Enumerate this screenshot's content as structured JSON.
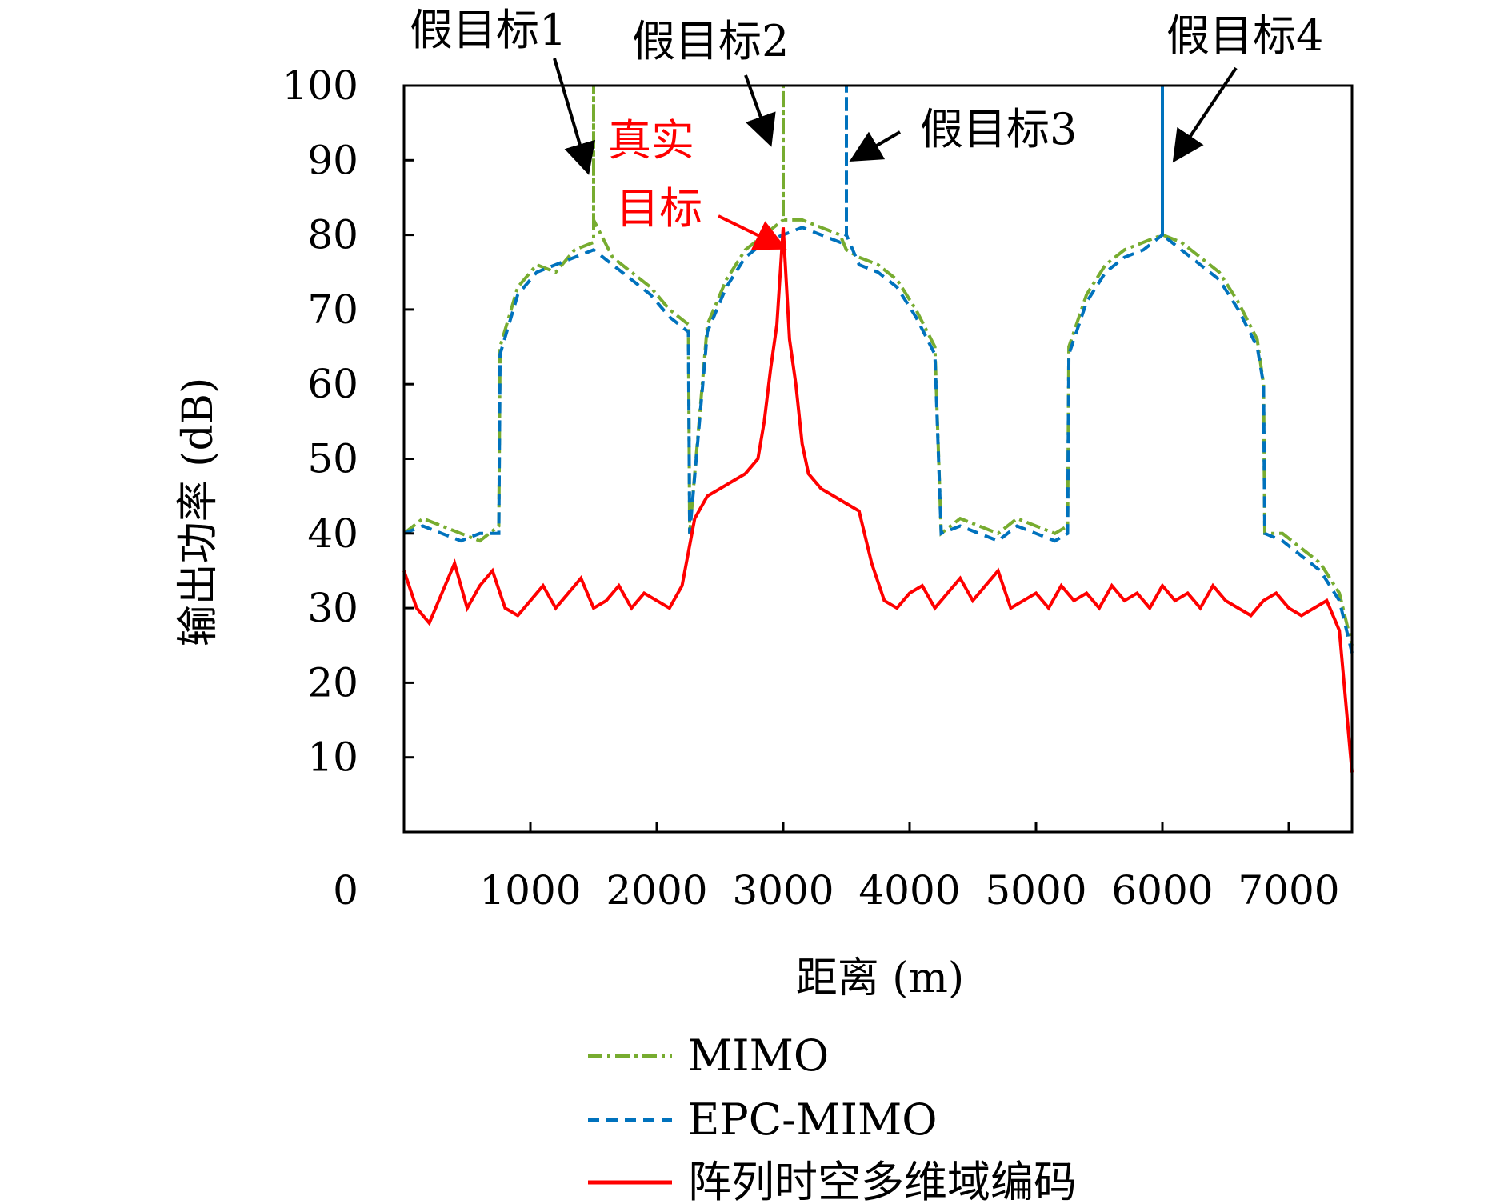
{
  "chart_data": {
    "type": "line",
    "xlabel": "距离 (m)",
    "ylabel": "输出功率 (dB)",
    "xlim": [
      0,
      7500
    ],
    "ylim": [
      0,
      100
    ],
    "x_ticks": [
      0,
      1000,
      2000,
      3000,
      4000,
      5000,
      6000,
      7000
    ],
    "y_ticks": [
      10,
      20,
      30,
      40,
      50,
      60,
      70,
      80,
      90,
      100
    ],
    "grid": false,
    "legend_position": "bottom",
    "series": [
      {
        "name": "MIMO",
        "color": "#77ac30",
        "style": "dash-dot",
        "x": [
          0,
          150,
          300,
          450,
          600,
          750,
          760,
          900,
          1050,
          1200,
          1350,
          1500,
          1500,
          1500,
          1650,
          1800,
          1950,
          2100,
          2250,
          2260,
          2400,
          2550,
          2700,
          2850,
          3000,
          3000,
          3000,
          3150,
          3300,
          3450,
          3500,
          3600,
          3750,
          3900,
          4050,
          4200,
          4250,
          4400,
          4550,
          4700,
          4850,
          5000,
          5150,
          5250,
          5260,
          5400,
          5550,
          5700,
          5850,
          6000,
          6150,
          6300,
          6450,
          6600,
          6750,
          6800,
          6810,
          6950,
          7100,
          7250,
          7400,
          7500
        ],
        "values": [
          40,
          42,
          41,
          40,
          39,
          41,
          65,
          73,
          76,
          75,
          78,
          79,
          100,
          82,
          77,
          75,
          73,
          70,
          68,
          40,
          68,
          74,
          78,
          80,
          82,
          100,
          82,
          82,
          81,
          80,
          78,
          77,
          76,
          74,
          70,
          65,
          40,
          42,
          41,
          40,
          42,
          41,
          40,
          41,
          65,
          72,
          76,
          78,
          79,
          80,
          79,
          77,
          75,
          71,
          66,
          60,
          40,
          40,
          38,
          36,
          32,
          25
        ]
      },
      {
        "name": "EPC-MIMO",
        "color": "#0072bd",
        "style": "dashed",
        "x": [
          0,
          150,
          300,
          450,
          600,
          750,
          760,
          900,
          1050,
          1200,
          1350,
          1500,
          1650,
          1800,
          1950,
          2100,
          2250,
          2260,
          2400,
          2550,
          2700,
          2850,
          3000,
          3150,
          3300,
          3450,
          3500,
          3500,
          3500,
          3600,
          3750,
          3900,
          4050,
          4200,
          4250,
          4400,
          4550,
          4700,
          4850,
          5000,
          5150,
          5250,
          5260,
          5400,
          5550,
          5700,
          5850,
          6000,
          6000,
          6000,
          6150,
          6300,
          6450,
          6600,
          6750,
          6800,
          6810,
          6950,
          7100,
          7250,
          7400,
          7500
        ],
        "values": [
          40,
          41,
          40,
          39,
          40,
          40,
          64,
          72,
          75,
          76,
          77,
          78,
          76,
          74,
          72,
          69,
          67,
          40,
          67,
          73,
          77,
          79,
          80,
          81,
          80,
          79,
          80,
          100,
          80,
          76,
          75,
          73,
          69,
          64,
          40,
          41,
          40,
          39,
          41,
          40,
          39,
          40,
          64,
          71,
          75,
          77,
          78,
          80,
          100,
          80,
          78,
          76,
          74,
          70,
          65,
          60,
          40,
          39,
          37,
          35,
          31,
          24
        ]
      },
      {
        "name": "阵列时空多维域编码",
        "color": "#ff0000",
        "style": "solid",
        "x": [
          0,
          100,
          200,
          300,
          400,
          500,
          600,
          700,
          800,
          900,
          1000,
          1100,
          1200,
          1300,
          1400,
          1500,
          1600,
          1700,
          1800,
          1900,
          2000,
          2100,
          2200,
          2300,
          2400,
          2500,
          2600,
          2700,
          2800,
          2850,
          2900,
          2950,
          3000,
          3050,
          3100,
          3150,
          3200,
          3300,
          3400,
          3500,
          3600,
          3700,
          3800,
          3900,
          4000,
          4100,
          4200,
          4300,
          4400,
          4500,
          4600,
          4700,
          4800,
          4900,
          5000,
          5100,
          5200,
          5300,
          5400,
          5500,
          5600,
          5700,
          5800,
          5900,
          6000,
          6100,
          6200,
          6300,
          6400,
          6500,
          6600,
          6700,
          6800,
          6900,
          7000,
          7100,
          7200,
          7300,
          7400,
          7500
        ],
        "values": [
          35,
          30,
          28,
          32,
          36,
          30,
          33,
          35,
          30,
          29,
          31,
          33,
          30,
          32,
          34,
          30,
          31,
          33,
          30,
          32,
          31,
          30,
          33,
          42,
          45,
          46,
          47,
          48,
          50,
          55,
          62,
          68,
          81,
          66,
          60,
          52,
          48,
          46,
          45,
          44,
          43,
          36,
          31,
          30,
          32,
          33,
          30,
          32,
          34,
          31,
          33,
          35,
          30,
          31,
          32,
          30,
          33,
          31,
          32,
          30,
          33,
          31,
          32,
          30,
          33,
          31,
          32,
          30,
          33,
          31,
          30,
          29,
          31,
          32,
          30,
          29,
          30,
          31,
          27,
          8
        ]
      }
    ],
    "annotations": [
      {
        "text": "假目标1",
        "x": 1500,
        "y": 87,
        "color": "#000000"
      },
      {
        "text": "假目标2",
        "x": 3000,
        "y": 91,
        "color": "#000000"
      },
      {
        "text": "假目标3",
        "x": 3500,
        "y": 89,
        "color": "#000000"
      },
      {
        "text": "假目标4",
        "x": 6000,
        "y": 89,
        "color": "#000000"
      },
      {
        "text": "真实目标",
        "x": 3000,
        "y": 80,
        "color": "#ff0000"
      }
    ]
  }
}
